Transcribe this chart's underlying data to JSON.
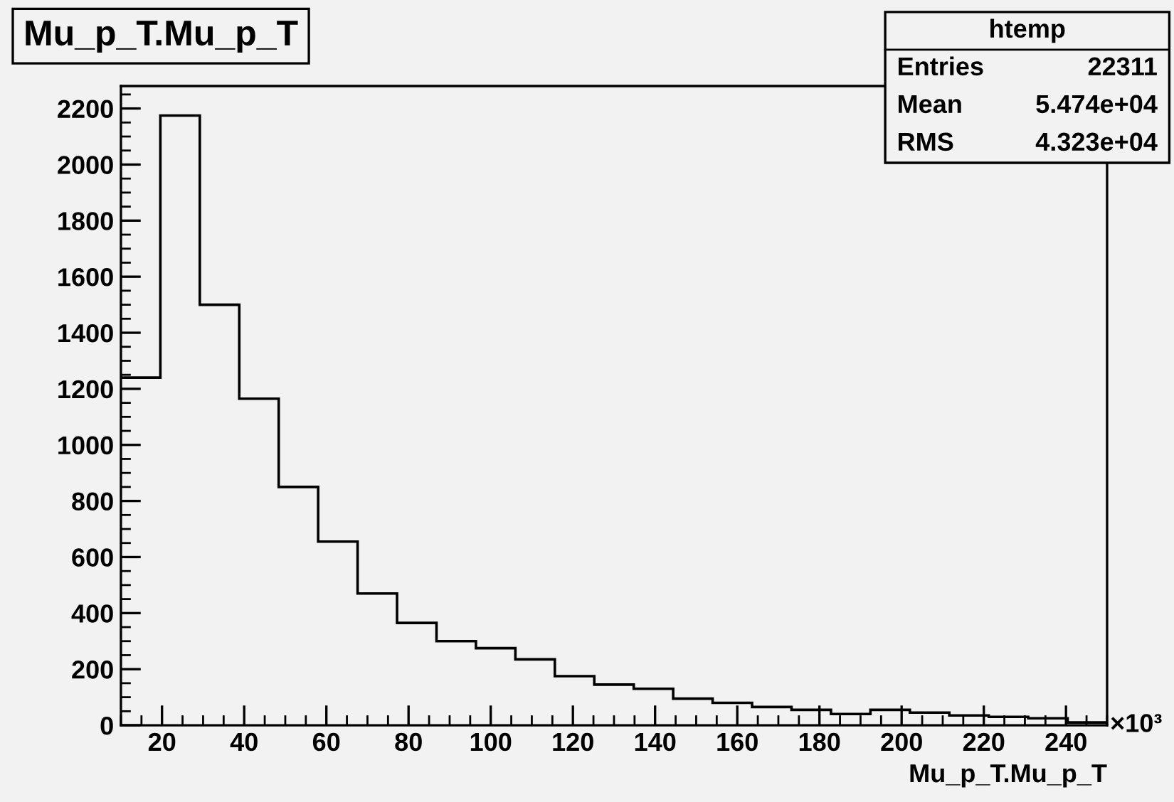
{
  "chart_data": {
    "type": "histogram",
    "title": "Mu_p_T.Mu_p_T",
    "xlabel": "Mu_p_T.Mu_p_T",
    "bins": [
      10,
      19.6,
      29.2,
      38.8,
      48.4,
      58,
      67.6,
      77.2,
      86.8,
      96.4,
      106,
      115.6,
      125.2,
      134.8,
      144.4,
      154,
      163.6,
      173.2,
      182.8,
      192.4,
      202,
      211.6,
      221.2,
      230.8,
      240.4,
      250
    ],
    "values": [
      1240,
      2175,
      1500,
      1165,
      850,
      655,
      470,
      365,
      300,
      275,
      235,
      175,
      145,
      130,
      95,
      80,
      65,
      55,
      40,
      55,
      45,
      35,
      30,
      25,
      10
    ],
    "color": "#000000",
    "xlim": [
      10,
      250
    ],
    "xticks": [
      20,
      40,
      60,
      80,
      100,
      120,
      140,
      160,
      180,
      200,
      220,
      240
    ],
    "ylim": [
      0,
      2280
    ],
    "yticks": [
      0,
      200,
      400,
      600,
      800,
      1000,
      1200,
      1400,
      1600,
      1800,
      2000,
      2200
    ],
    "grid": false,
    "annotations": [
      "htemp",
      "Entries",
      "22311",
      "Mean",
      "5.474e+04",
      "RMS",
      "4.323e+04",
      "×10³"
    ]
  }
}
